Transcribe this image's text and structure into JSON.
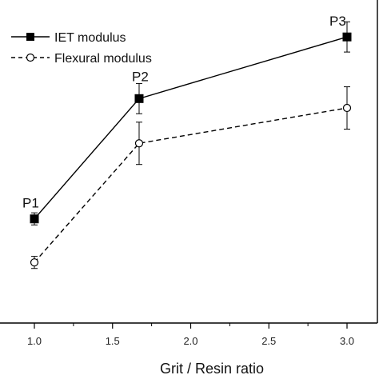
{
  "chart_data": {
    "type": "line",
    "xlabel": "Grit / Resin ratio",
    "ylabel": "",
    "xlim": [
      0.85,
      3.05
    ],
    "ylim": [
      0,
      1
    ],
    "x_ticks": [
      "1.0",
      "1.5",
      "2.0",
      "2.5",
      "3.0"
    ],
    "series": [
      {
        "name": "IET modulus",
        "marker": "filled-square",
        "line_style": "solid",
        "x": [
          1.0,
          1.67,
          3.0
        ],
        "y": [
          0.334,
          0.732,
          0.936
        ],
        "err": [
          0.02,
          0.05,
          0.05
        ],
        "point_labels": [
          "P1",
          "P2",
          "P3"
        ]
      },
      {
        "name": "Flexural modulus",
        "marker": "open-circle",
        "line_style": "dashed",
        "x": [
          1.0,
          1.67,
          3.0
        ],
        "y": [
          0.19,
          0.584,
          0.701
        ],
        "err": [
          0.02,
          0.07,
          0.07
        ]
      }
    ],
    "legend_position": "top-left",
    "grid": false,
    "colors": {
      "line": "#000000",
      "open_marker_fill": "#ffffff"
    }
  }
}
